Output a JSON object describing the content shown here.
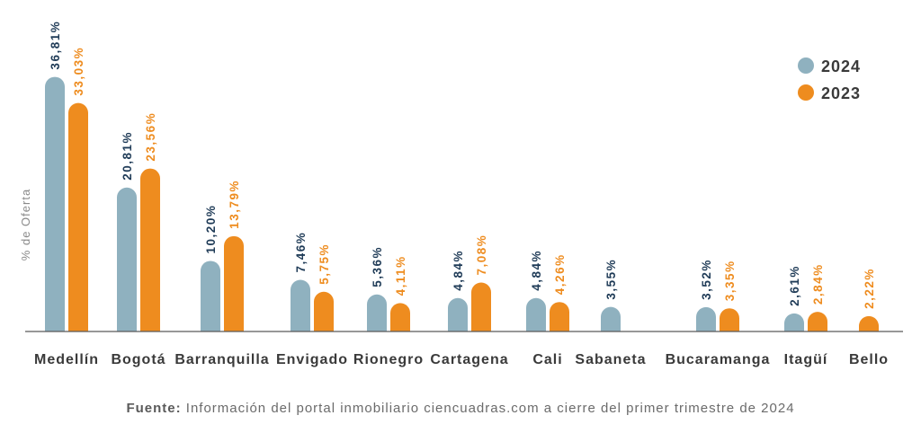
{
  "chart_data": {
    "type": "bar",
    "ylabel": "% de Oferta",
    "categories": [
      "Medellín",
      "Bogotá",
      "Barranquilla",
      "Envigado",
      "Rionegro",
      "Cartagena",
      "Cali",
      "Sabaneta",
      "Bucaramanga",
      "Itagüí",
      "Bello"
    ],
    "series": [
      {
        "name": "2024",
        "color": "#8fb1bf",
        "label_color": "#1f3b57",
        "values": [
          36.81,
          20.81,
          10.2,
          7.46,
          5.36,
          4.84,
          4.84,
          3.55,
          3.52,
          2.61,
          null
        ],
        "labels": [
          "36,81%",
          "20,81%",
          "10,20%",
          "7,46%",
          "5,36%",
          "4,84%",
          "4,84%",
          "3,55%",
          "3,52%",
          "2,61%",
          ""
        ]
      },
      {
        "name": "2023",
        "color": "#ee8c1f",
        "label_color": "#ee8c1f",
        "values": [
          33.03,
          23.56,
          13.79,
          5.75,
          4.11,
          7.08,
          4.26,
          null,
          3.35,
          2.84,
          2.22
        ],
        "labels": [
          "33,03%",
          "23,56%",
          "13,79%",
          "5,75%",
          "4,11%",
          "7,08%",
          "4,26%",
          "",
          "3,35%",
          "2,84%",
          "2,22%"
        ]
      }
    ],
    "grid": false,
    "legend_position": "top-right"
  },
  "source": {
    "label": "Fuente:",
    "text": "Información del portal inmobiliario ciencuadras.com a cierre del primer trimestre de 2024"
  }
}
